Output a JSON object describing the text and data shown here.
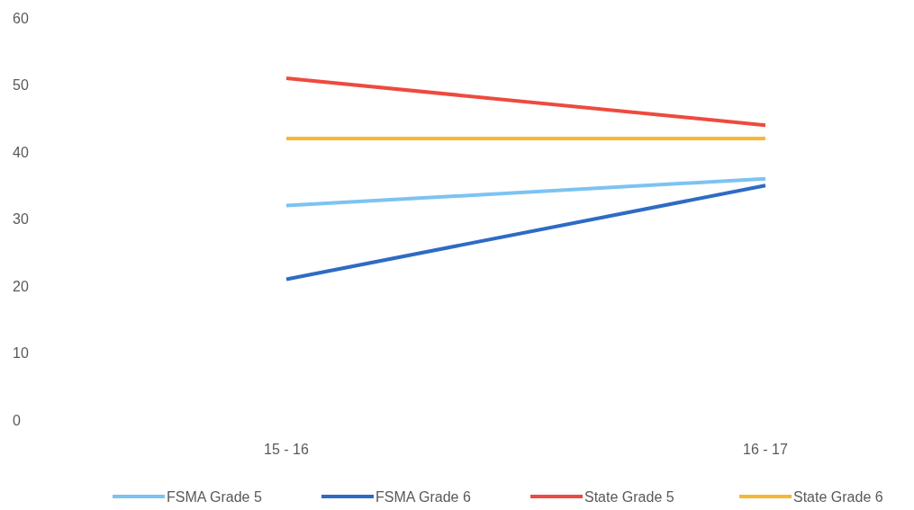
{
  "chart_data": {
    "type": "line",
    "categories": [
      "15 - 16",
      "16 - 17"
    ],
    "series": [
      {
        "name": "FSMA Grade 5",
        "color": "#7cc3f2",
        "values": [
          32,
          36
        ]
      },
      {
        "name": "FSMA Grade 6",
        "color": "#2e6bc4",
        "values": [
          21,
          35
        ]
      },
      {
        "name": "State Grade 5",
        "color": "#ee4a3f",
        "values": [
          51,
          44
        ]
      },
      {
        "name": "State Grade 6",
        "color": "#f7b733",
        "values": [
          42,
          42
        ]
      }
    ],
    "ylim": [
      0,
      60
    ],
    "yticks": [
      0,
      10,
      20,
      30,
      40,
      50,
      60
    ],
    "grid": false,
    "legend": "bottom",
    "marker": "none",
    "line_style": "solid"
  }
}
